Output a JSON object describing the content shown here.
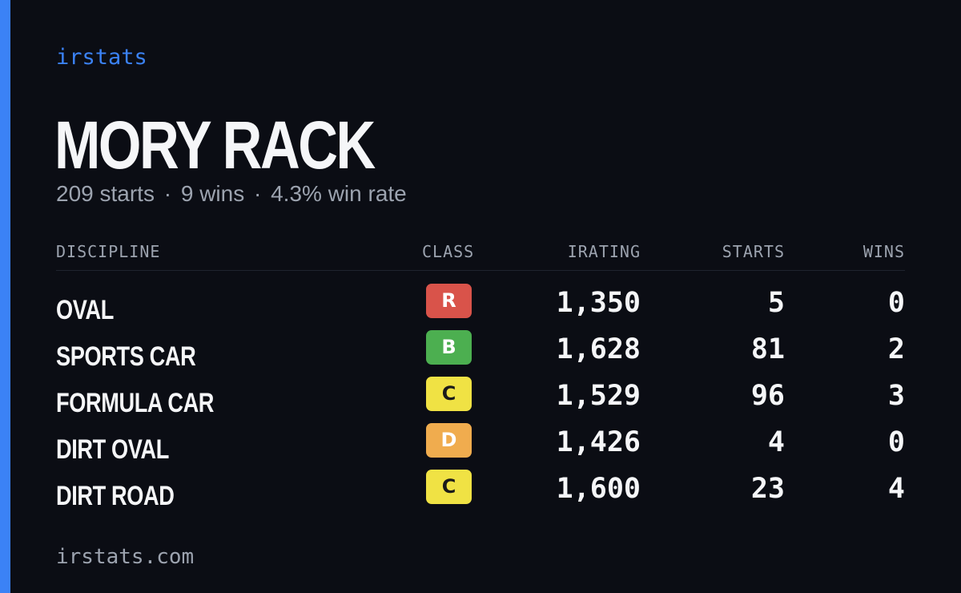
{
  "brand": "irstats",
  "driver": {
    "name": "MORY RACK",
    "starts_text": "209 starts",
    "wins_text": "9 wins",
    "win_rate_text": "4.3% win rate",
    "separator": "·"
  },
  "table": {
    "headers": {
      "discipline": "DISCIPLINE",
      "class": "CLASS",
      "irating": "IRATING",
      "starts": "STARTS",
      "wins": "WINS"
    },
    "rows": [
      {
        "discipline": "OVAL",
        "class": "R",
        "class_bg": "#d9534a",
        "class_fg": "#ffffff",
        "irating": "1,350",
        "starts": "5",
        "wins": "0"
      },
      {
        "discipline": "SPORTS CAR",
        "class": "B",
        "class_bg": "#4caf50",
        "class_fg": "#ffffff",
        "irating": "1,628",
        "starts": "81",
        "wins": "2"
      },
      {
        "discipline": "FORMULA CAR",
        "class": "C",
        "class_bg": "#f0e244",
        "class_fg": "#1a1a1a",
        "irating": "1,529",
        "starts": "96",
        "wins": "3"
      },
      {
        "discipline": "DIRT OVAL",
        "class": "D",
        "class_bg": "#f0ac4e",
        "class_fg": "#ffffff",
        "irating": "1,426",
        "starts": "4",
        "wins": "0"
      },
      {
        "discipline": "DIRT ROAD",
        "class": "C",
        "class_bg": "#f0e244",
        "class_fg": "#1a1a1a",
        "irating": "1,600",
        "starts": "23",
        "wins": "4"
      }
    ]
  },
  "footer": "irstats.com",
  "colors": {
    "accent": "#3b82f6",
    "background": "#0b0d14",
    "muted": "#9ca3af"
  }
}
